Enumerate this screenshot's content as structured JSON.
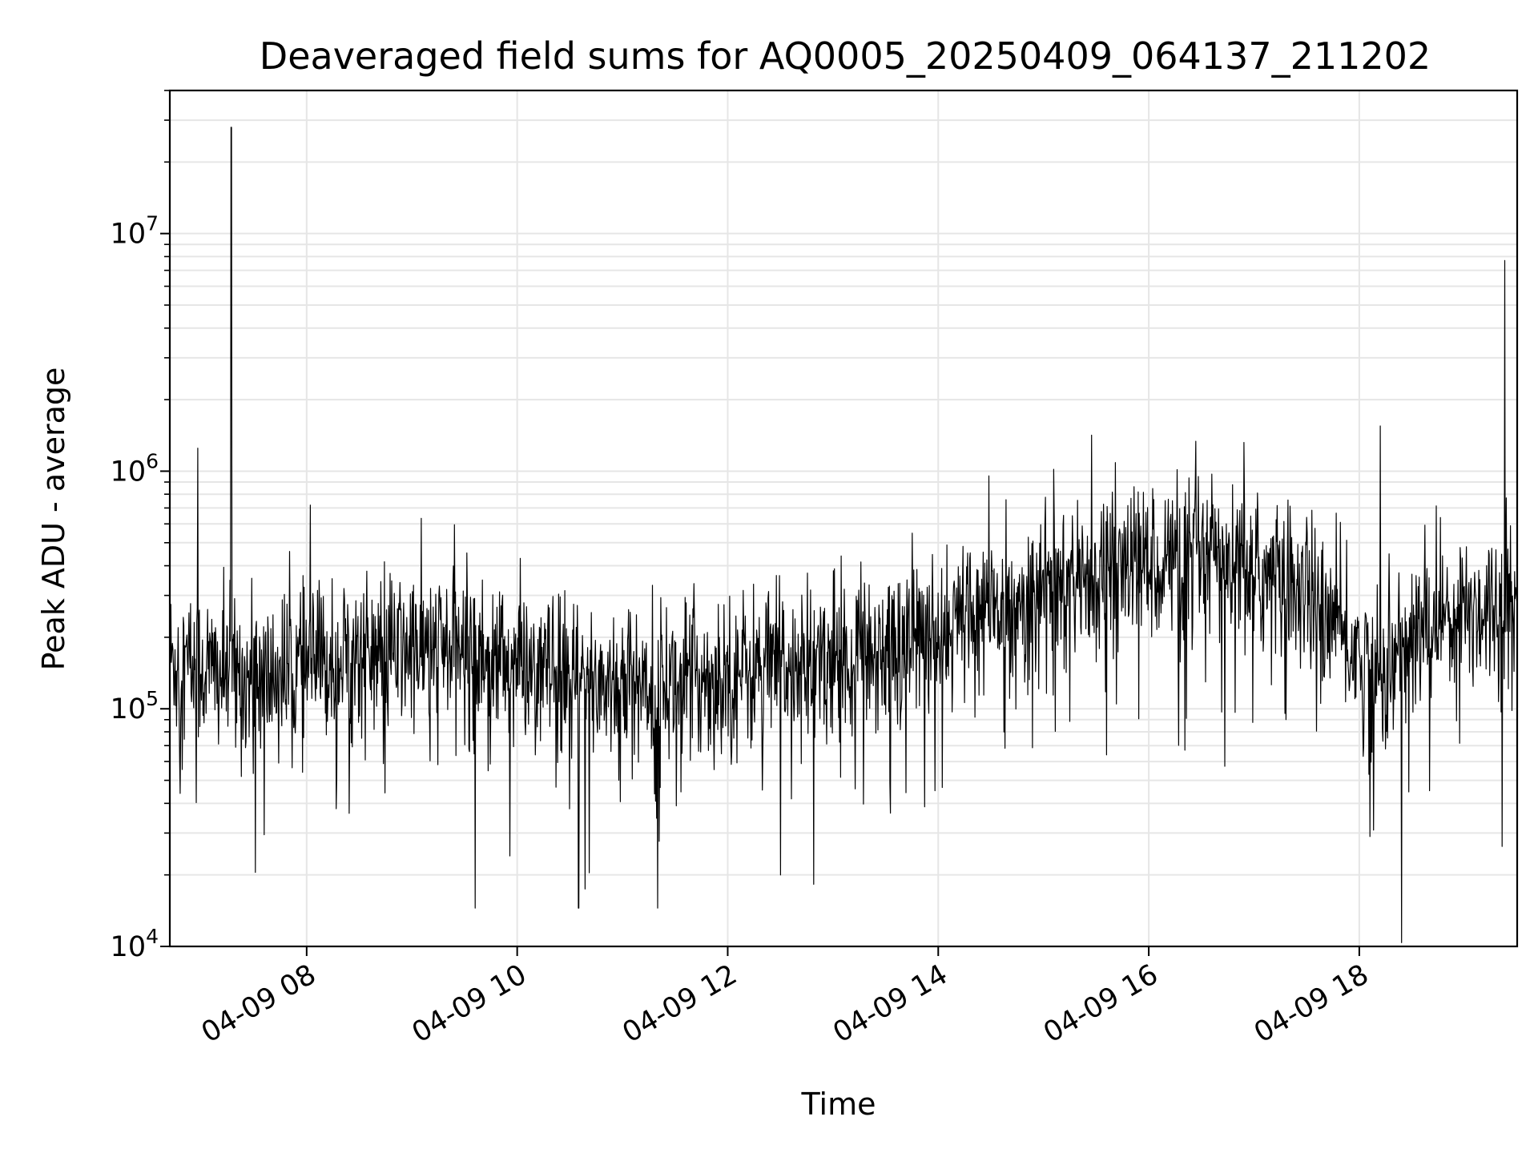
{
  "chart_data": {
    "type": "line",
    "title": "Deaveraged field sums for AQ0005_20250409_064137_211202",
    "xlabel": "Time",
    "ylabel": "Peak ADU - average",
    "yscale": "log",
    "ylim": [
      10000,
      40000000
    ],
    "xlim": [
      "04-09 06:42",
      "04-09 19:30"
    ],
    "grid": true,
    "line_color": "#000000",
    "x_tick_labels": [
      "04-09 08",
      "04-09 10",
      "04-09 12",
      "04-09 14",
      "04-09 16",
      "04-09 18"
    ],
    "x_tick_values": [
      "04-09 08:00",
      "04-09 10:00",
      "04-09 12:00",
      "04-09 14:00",
      "04-09 16:00",
      "04-09 18:00"
    ],
    "y_tick_labels": [
      {
        "base": "10",
        "exp": "4"
      },
      {
        "base": "10",
        "exp": "5"
      },
      {
        "base": "10",
        "exp": "6"
      },
      {
        "base": "10",
        "exp": "7"
      }
    ],
    "y_tick_values": [
      10000,
      100000,
      1000000,
      10000000
    ],
    "series_baseline": {
      "x": [
        "04-09 06:42",
        "04-09 07:30",
        "04-09 08:30",
        "04-09 09:30",
        "04-09 10:30",
        "04-09 11:30",
        "04-09 12:30",
        "04-09 13:30",
        "04-09 14:30",
        "04-09 15:30",
        "04-09 16:30",
        "04-09 17:30",
        "04-09 18:10",
        "04-09 18:45",
        "04-09 19:30"
      ],
      "y": [
        160000,
        130000,
        170000,
        180000,
        130000,
        130000,
        150000,
        180000,
        260000,
        380000,
        440000,
        320000,
        130000,
        250000,
        280000
      ]
    },
    "spikes": [
      {
        "x": "04-09 07:17",
        "y": 28000000
      },
      {
        "x": "04-09 06:58",
        "y": 1250000
      },
      {
        "x": "04-09 08:02",
        "y": 720000
      },
      {
        "x": "04-09 18:12",
        "y": 1550000
      },
      {
        "x": "04-09 19:23",
        "y": 7700000
      },
      {
        "x": "04-09 09:36",
        "y": 14500
      },
      {
        "x": "04-09 10:35",
        "y": 14500
      },
      {
        "x": "04-09 11:20",
        "y": 14500
      },
      {
        "x": "04-09 12:30",
        "y": 20000
      },
      {
        "x": "04-09 18:06",
        "y": 29000
      }
    ]
  }
}
